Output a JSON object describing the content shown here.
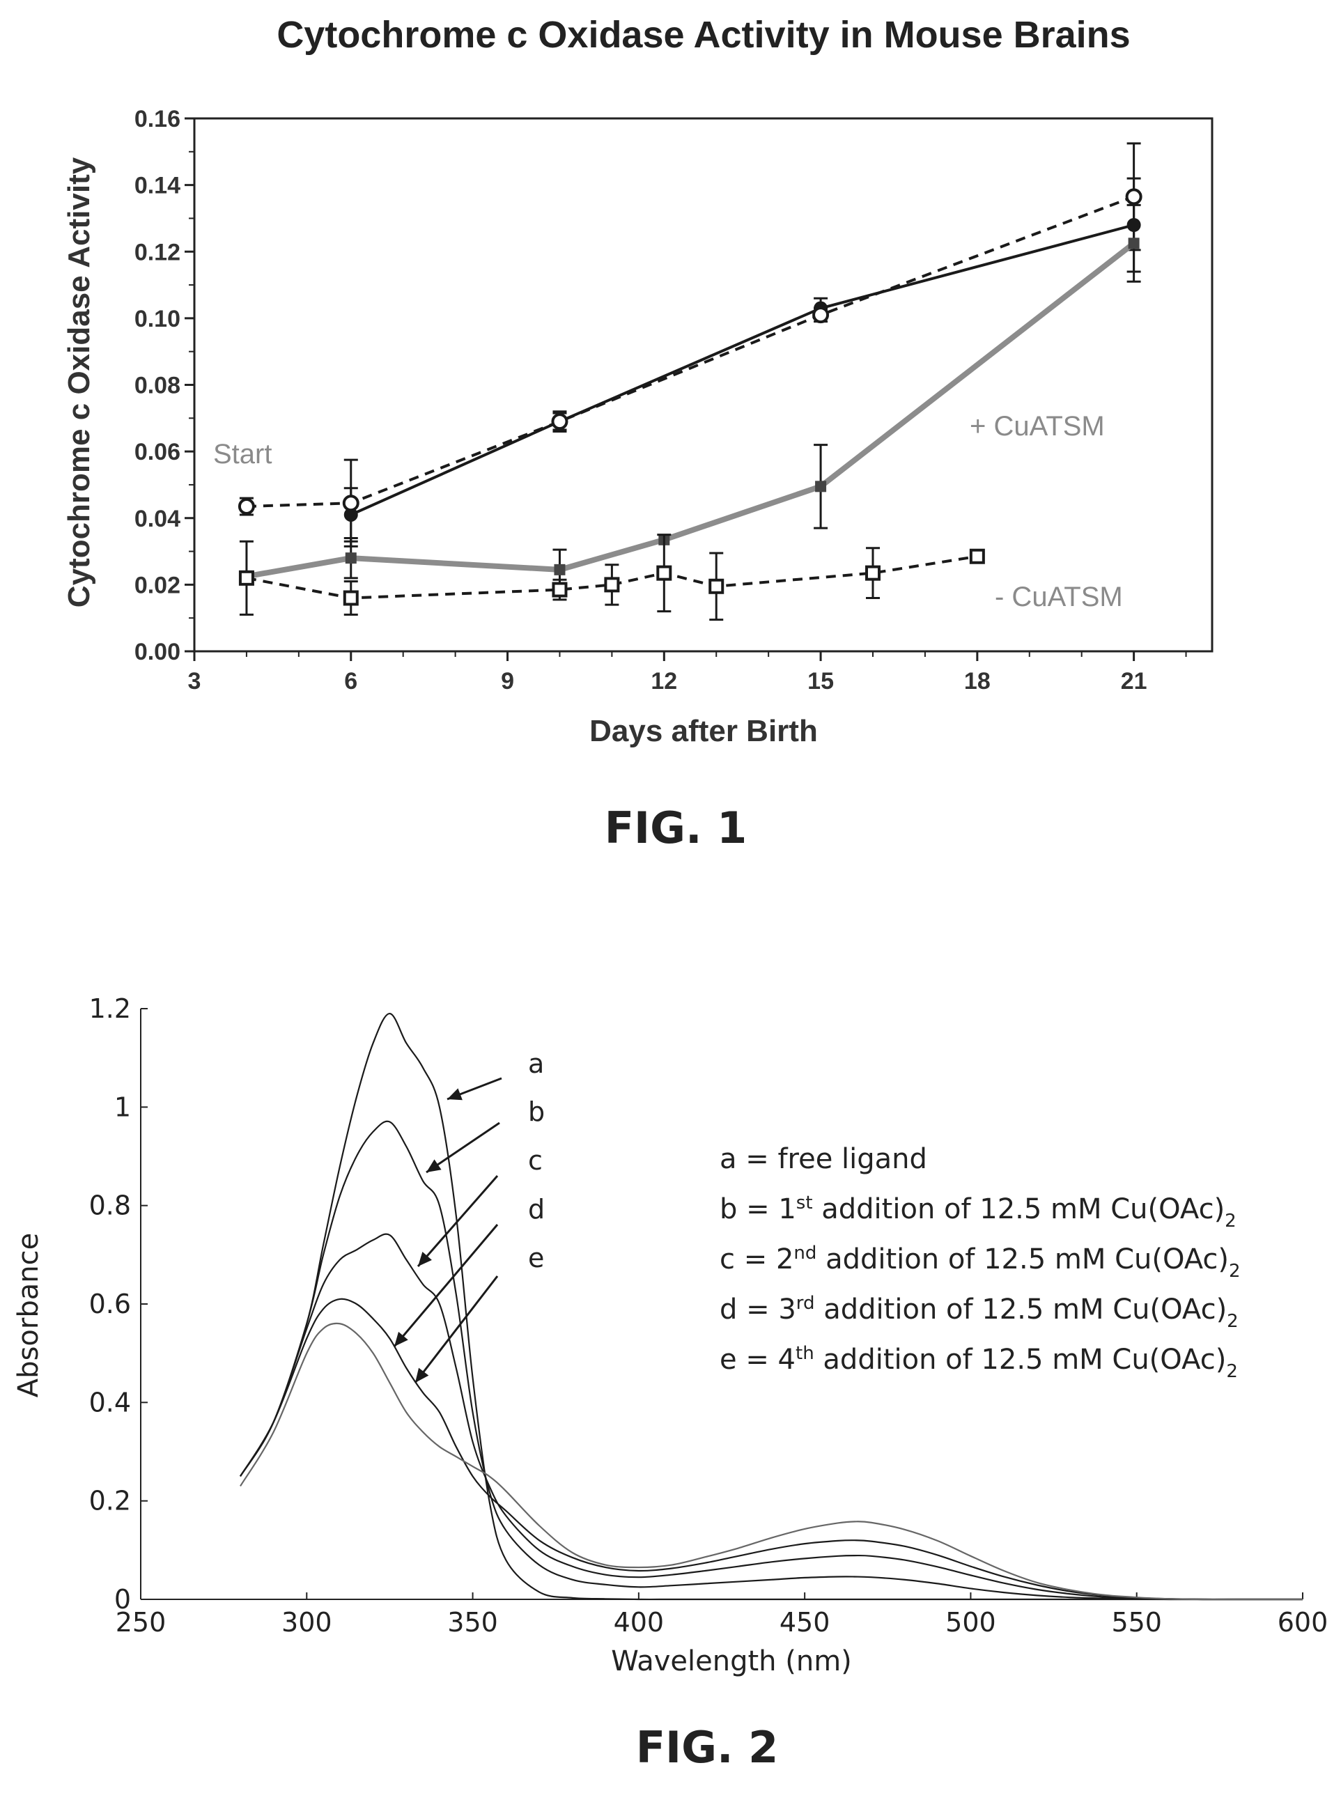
{
  "fig1": {
    "caption": "FIG. 1",
    "start_label": "Start",
    "plus_label": "+ CuATSM",
    "minus_label": "- CuATSM"
  },
  "fig2": {
    "caption": "FIG. 2",
    "legend": [
      {
        "prefix": "a = free ligand",
        "sup": "",
        "rest": "",
        "sub": ""
      },
      {
        "prefix": "b = 1",
        "sup": "st",
        "rest": " addition of 12.5 mM Cu(OAc)",
        "sub": "2"
      },
      {
        "prefix": "c = 2",
        "sup": "nd",
        "rest": " addition of 12.5 mM Cu(OAc)",
        "sub": "2"
      },
      {
        "prefix": "d = 3",
        "sup": "rd",
        "rest": " addition of 12.5 mM Cu(OAc)",
        "sub": "2"
      },
      {
        "prefix": "e = 4",
        "sup": "th",
        "rest": " addition of 12.5 mM Cu(OAc)",
        "sub": "2"
      }
    ]
  },
  "chart_data": [
    {
      "type": "line",
      "title": "Cytochrome c Oxidase Activity in Mouse Brains",
      "xlabel": "Days after Birth",
      "ylabel": "Cytochrome c Oxidase Activity",
      "xlim": [
        3,
        22.5
      ],
      "ylim": [
        0,
        0.16
      ],
      "xticks": [
        "3",
        "6",
        "9",
        "12",
        "15",
        "18",
        "21"
      ],
      "yticks": [
        "0.00",
        "0.02",
        "0.04",
        "0.06",
        "0.08",
        "0.10",
        "0.12",
        "0.14",
        "0.16"
      ],
      "series": [
        {
          "style": "solid-black",
          "marker": "filled-circle",
          "color": "#1a1a1a",
          "x": [
            6,
            10,
            15,
            21
          ],
          "y": [
            0.041,
            0.069,
            0.103,
            0.128
          ],
          "err": [
            0.008,
            0.003,
            0.003,
            0.014
          ]
        },
        {
          "style": "dashed-black",
          "marker": "open-circle",
          "color": "#1a1a1a",
          "x": [
            4,
            6,
            10,
            15,
            21
          ],
          "y": [
            0.0435,
            0.0445,
            0.069,
            0.101,
            0.1365
          ],
          "err": [
            0.0025,
            0.013,
            0.0025,
            0.002,
            0.016
          ]
        },
        {
          "style": "solid-gray",
          "marker": "filled-square",
          "color": "#8c8c8c",
          "x": [
            4,
            6,
            10,
            12,
            15,
            21
          ],
          "y": [
            0.0225,
            0.028,
            0.0245,
            0.0335,
            0.0495,
            0.1225
          ],
          "err": [
            0,
            0.006,
            0.006,
            0,
            0.0125,
            0.0115
          ]
        },
        {
          "style": "dashed-black",
          "marker": "open-square",
          "color": "#1a1a1a",
          "x": [
            4,
            6,
            10,
            11,
            12,
            13,
            16,
            18
          ],
          "y": [
            0.022,
            0.016,
            0.0185,
            0.02,
            0.0235,
            0.0195,
            0.0235,
            0.0285
          ],
          "err": [
            0.011,
            0.005,
            0.003,
            0.006,
            0.0115,
            0.01,
            0.0075,
            0.001
          ]
        }
      ]
    },
    {
      "type": "line",
      "xlabel": "Wavelength (nm)",
      "ylabel": "Absorbance",
      "xlim": [
        250,
        600
      ],
      "ylim": [
        0,
        1.2
      ],
      "xticks": [
        "250",
        "300",
        "350",
        "400",
        "450",
        "500",
        "550",
        "600"
      ],
      "yticks": [
        "0",
        "0.2",
        "0.4",
        "0.6",
        "0.8",
        "1",
        "1.2"
      ],
      "x": [
        280,
        290,
        300,
        305,
        310,
        315,
        320,
        325,
        330,
        335,
        340,
        345,
        350,
        355,
        360,
        370,
        380,
        390,
        400,
        410,
        420,
        430,
        440,
        450,
        460,
        465,
        470,
        480,
        490,
        500,
        510,
        520,
        530,
        540,
        550,
        560,
        570,
        580,
        600
      ],
      "series": [
        {
          "name": "a",
          "values": [
            0.25,
            0.36,
            0.56,
            0.72,
            0.88,
            1.02,
            1.13,
            1.19,
            1.13,
            1.08,
            1.0,
            0.78,
            0.45,
            0.2,
            0.08,
            0.015,
            0.003,
            0.001,
            0,
            0,
            0,
            0,
            0,
            0,
            0,
            0,
            0,
            0,
            0,
            0,
            0,
            0,
            0,
            0,
            0,
            0,
            0,
            0,
            0
          ]
        },
        {
          "name": "b",
          "values": [
            0.25,
            0.36,
            0.56,
            0.7,
            0.82,
            0.9,
            0.95,
            0.97,
            0.92,
            0.85,
            0.8,
            0.62,
            0.38,
            0.22,
            0.14,
            0.07,
            0.04,
            0.03,
            0.025,
            0.028,
            0.032,
            0.036,
            0.04,
            0.044,
            0.046,
            0.046,
            0.045,
            0.04,
            0.032,
            0.022,
            0.014,
            0.008,
            0.004,
            0.002,
            0.001,
            0,
            0,
            0,
            0
          ]
        },
        {
          "name": "c",
          "values": [
            0.25,
            0.36,
            0.55,
            0.64,
            0.69,
            0.71,
            0.73,
            0.74,
            0.69,
            0.64,
            0.6,
            0.47,
            0.32,
            0.23,
            0.17,
            0.1,
            0.067,
            0.05,
            0.045,
            0.05,
            0.058,
            0.067,
            0.076,
            0.083,
            0.088,
            0.089,
            0.088,
            0.08,
            0.066,
            0.049,
            0.033,
            0.02,
            0.011,
            0.005,
            0.002,
            0.001,
            0,
            0,
            0
          ]
        },
        {
          "name": "d",
          "values": [
            0.25,
            0.36,
            0.53,
            0.59,
            0.61,
            0.6,
            0.57,
            0.53,
            0.47,
            0.42,
            0.38,
            0.31,
            0.25,
            0.21,
            0.18,
            0.12,
            0.085,
            0.065,
            0.058,
            0.063,
            0.074,
            0.088,
            0.102,
            0.113,
            0.119,
            0.12,
            0.118,
            0.108,
            0.09,
            0.067,
            0.046,
            0.029,
            0.016,
            0.008,
            0.003,
            0.001,
            0,
            0,
            0
          ]
        },
        {
          "name": "e",
          "values": [
            0.23,
            0.34,
            0.5,
            0.55,
            0.56,
            0.54,
            0.5,
            0.44,
            0.38,
            0.34,
            0.31,
            0.29,
            0.27,
            0.25,
            0.22,
            0.15,
            0.095,
            0.07,
            0.065,
            0.07,
            0.086,
            0.104,
            0.125,
            0.143,
            0.155,
            0.158,
            0.156,
            0.142,
            0.119,
            0.088,
            0.058,
            0.034,
            0.019,
            0.009,
            0.004,
            0.001,
            0,
            0,
            0
          ]
        }
      ],
      "annotations": [
        "a",
        "b",
        "c",
        "d",
        "e"
      ]
    }
  ]
}
